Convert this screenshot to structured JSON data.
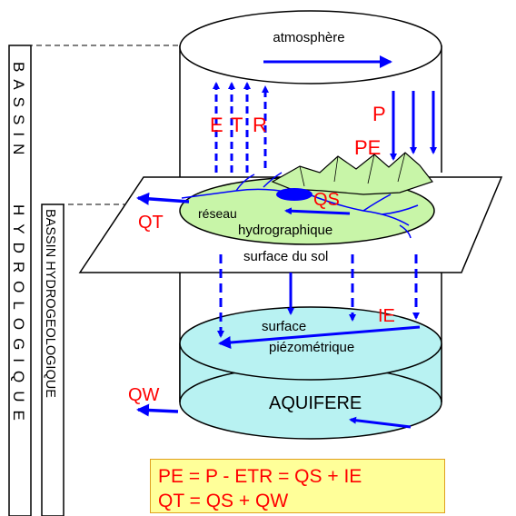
{
  "labels": {
    "atmosphere": "atmosphère",
    "etr_e": "E",
    "etr_t": "T",
    "etr_r": "R",
    "p": "P",
    "pe": "PE",
    "qs": "QS",
    "qt": "QT",
    "reseau": "réseau",
    "hydrographique": "hydrographique",
    "surface_sol": "surface du sol",
    "ie": "IE",
    "surface": "surface",
    "piezometrique": "piézométrique",
    "qw": "QW",
    "aquifere": "AQUIFERE"
  },
  "side_labels": {
    "bassin_hydrologique_top": "BASSIN",
    "bassin_hydrologique_bottom": "HYDROLOGIQUE",
    "bassin_hydrogeologique": "BASSIN HYDROGEOLOGIQUE"
  },
  "formulas": {
    "line1": "PE = P - ETR = QS + IE",
    "line2": "QT = QS + QW"
  },
  "colors": {
    "arrow_blue": "#0000ff",
    "label_red": "#ff0000",
    "land_green": "#c8f5a8",
    "aquifer_cyan": "#b8f2f2",
    "formula_bg": "#ffff99"
  }
}
